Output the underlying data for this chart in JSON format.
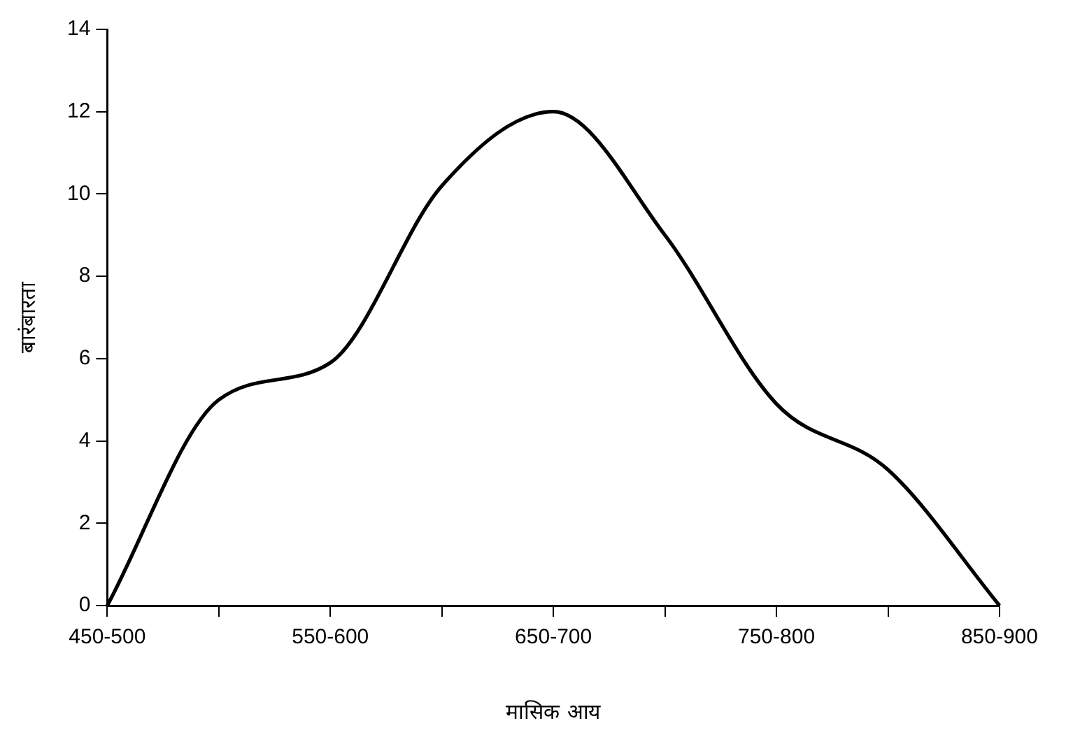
{
  "chart_data": {
    "type": "line",
    "xlabel": "मासिक आय",
    "ylabel": "बारंबारता",
    "categories": [
      "450-500",
      null,
      "550-600",
      null,
      "650-700",
      null,
      "750-800",
      null,
      "850-900"
    ],
    "series": [
      {
        "color": "#000000",
        "values": [
          0,
          5,
          5.9,
          10.2,
          12,
          9,
          4.9,
          3.3,
          0
        ]
      }
    ],
    "ylim": [
      0,
      14
    ],
    "yticks": [
      0,
      2,
      4,
      6,
      8,
      10,
      12,
      14
    ],
    "grid": false,
    "legend": false,
    "marker": "none",
    "line_style": "solid"
  }
}
